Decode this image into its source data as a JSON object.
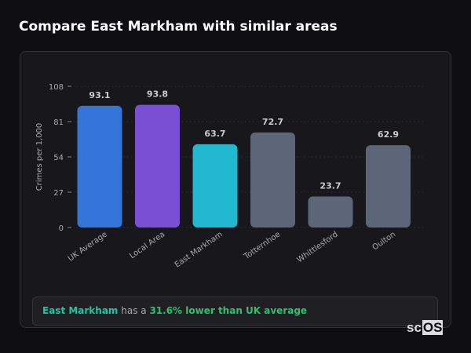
{
  "title": "Compare East Markham with similar areas",
  "chart_data": {
    "type": "bar",
    "ylabel": "Crimes per 1,000",
    "ylim": [
      0,
      108
    ],
    "yticks": [
      0,
      27,
      54,
      81,
      108
    ],
    "categories": [
      "UK Average",
      "Local Area",
      "East Markham",
      "Totternhoe",
      "Whittlesford",
      "Oulton"
    ],
    "values": [
      93.1,
      93.8,
      63.7,
      72.7,
      23.7,
      62.9
    ],
    "colors": [
      "#3574d9",
      "#7b4fd4",
      "#22b8d0",
      "#5d6678",
      "#5d6678",
      "#5d6678"
    ],
    "grid": true
  },
  "summary": {
    "area": "East Markham",
    "middle": " has a ",
    "comparison": "31.6% lower than UK average"
  },
  "logo": {
    "prefix": "sc",
    "box": "OS"
  }
}
